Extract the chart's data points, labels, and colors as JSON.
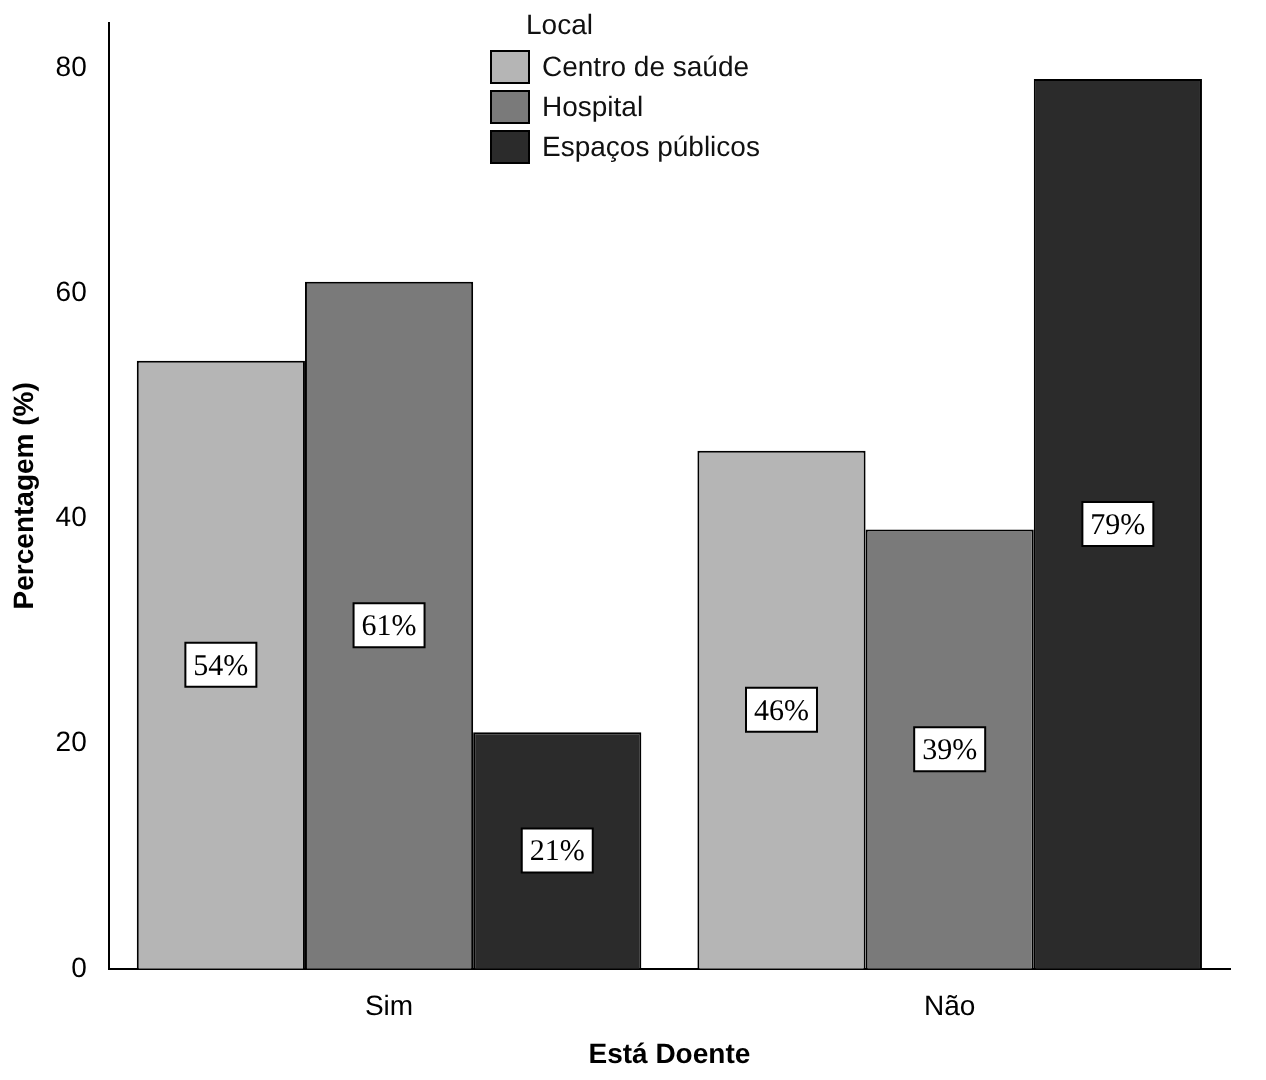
{
  "chart_data": {
    "type": "bar",
    "xlabel": "Está Doente",
    "ylabel": "Percentagem (%)",
    "legend_title": "Local",
    "legend": "top right",
    "categories": [
      "Sim",
      "Não"
    ],
    "series": [
      {
        "name": "Centro de saúde",
        "color": "#b5b5b5",
        "values": [
          54,
          46
        ],
        "value_labels": [
          "54%",
          "46%"
        ]
      },
      {
        "name": "Hospital",
        "color": "#7a7a7a",
        "values": [
          61,
          39
        ],
        "value_labels": [
          "61%",
          "39%"
        ]
      },
      {
        "name": "Espaços públicos",
        "color": "#2b2b2b",
        "values": [
          21,
          79
        ],
        "value_labels": [
          "21%",
          "79%"
        ]
      }
    ],
    "ylim": [
      0,
      84
    ],
    "yticks": [
      0,
      20,
      40,
      60,
      80
    ],
    "grid": false
  }
}
